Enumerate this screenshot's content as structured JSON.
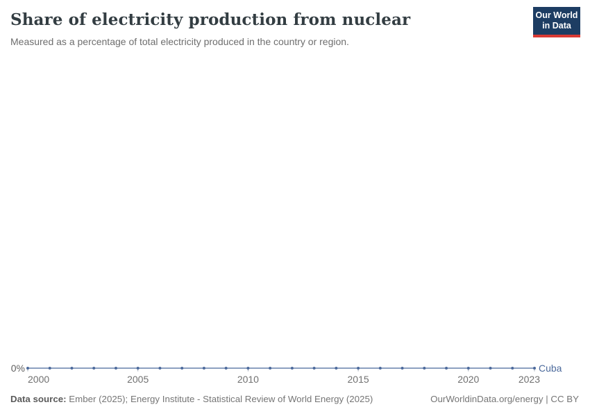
{
  "header": {
    "title": "Share of electricity production from nuclear",
    "subtitle": "Measured as a percentage of total electricity produced in the country or region.",
    "logo": {
      "line1": "Our World",
      "line2": "in Data",
      "bg_color": "#1d3d63",
      "accent_color": "#d93a34"
    }
  },
  "chart_data": {
    "type": "line",
    "title": "Share of electricity production from nuclear",
    "xlabel": "",
    "ylabel": "",
    "unit": "%",
    "x_range": [
      2000,
      2023
    ],
    "x_ticks": [
      2000,
      2005,
      2010,
      2015,
      2020,
      2023
    ],
    "y_tick_labels": [
      "0%"
    ],
    "grid": false,
    "legend_position": "end-of-line",
    "series": [
      {
        "name": "Cuba",
        "color": "#4c6a9c",
        "x": [
          2000,
          2001,
          2002,
          2003,
          2004,
          2005,
          2006,
          2007,
          2008,
          2009,
          2010,
          2011,
          2012,
          2013,
          2014,
          2015,
          2016,
          2017,
          2018,
          2019,
          2020,
          2021,
          2022,
          2023
        ],
        "values": [
          0,
          0,
          0,
          0,
          0,
          0,
          0,
          0,
          0,
          0,
          0,
          0,
          0,
          0,
          0,
          0,
          0,
          0,
          0,
          0,
          0,
          0,
          0,
          0
        ]
      }
    ]
  },
  "footer": {
    "source_label": "Data source:",
    "source_text": "Ember (2025); Energy Institute - Statistical Review of World Energy (2025)",
    "link_text": "OurWorldinData.org/energy | CC BY"
  }
}
